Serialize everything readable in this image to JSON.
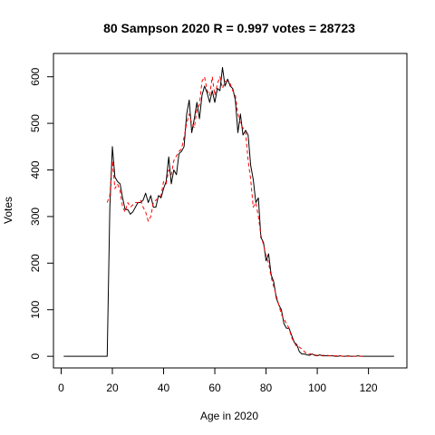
{
  "chart_data": {
    "type": "line",
    "title": "80 Sampson 2020 R = 0.997 votes = 28723",
    "xlabel": "Age in 2020",
    "ylabel": "Votes",
    "xlim": [
      -3,
      135
    ],
    "ylim": [
      -25,
      650
    ],
    "xticks": [
      0,
      20,
      40,
      60,
      80,
      100,
      120
    ],
    "yticks": [
      0,
      100,
      200,
      300,
      400,
      500,
      600
    ],
    "grid": false,
    "legend": "none",
    "series": [
      {
        "style": "solid",
        "color": "#000000",
        "x": [
          1,
          18,
          19,
          20,
          21,
          22,
          23,
          24,
          25,
          26,
          27,
          28,
          29,
          30,
          31,
          32,
          33,
          34,
          35,
          36,
          37,
          38,
          39,
          40,
          41,
          42,
          43,
          44,
          45,
          46,
          47,
          48,
          49,
          50,
          51,
          52,
          53,
          54,
          55,
          56,
          57,
          58,
          59,
          60,
          61,
          62,
          63,
          64,
          65,
          66,
          67,
          68,
          69,
          70,
          71,
          72,
          73,
          74,
          75,
          76,
          77,
          78,
          79,
          80,
          81,
          82,
          83,
          84,
          85,
          86,
          87,
          88,
          89,
          90,
          91,
          92,
          93,
          94,
          95,
          96,
          97,
          98,
          99,
          100,
          101,
          102,
          103,
          104,
          105,
          106,
          107,
          108,
          109,
          110,
          111,
          112,
          113,
          114,
          115,
          116,
          117,
          118,
          119,
          120,
          125,
          130
        ],
        "y": [
          0,
          0,
          320,
          450,
          385,
          375,
          370,
          340,
          315,
          315,
          305,
          310,
          320,
          330,
          330,
          335,
          350,
          330,
          345,
          320,
          320,
          345,
          340,
          360,
          375,
          428,
          370,
          400,
          390,
          435,
          440,
          450,
          520,
          550,
          480,
          510,
          545,
          510,
          560,
          580,
          565,
          545,
          570,
          545,
          575,
          570,
          620,
          580,
          595,
          580,
          575,
          550,
          480,
          520,
          475,
          485,
          475,
          410,
          380,
          330,
          340,
          255,
          245,
          205,
          220,
          175,
          160,
          125,
          110,
          100,
          70,
          60,
          60,
          45,
          30,
          25,
          10,
          5,
          5,
          3,
          2,
          5,
          2,
          1,
          3,
          1,
          1,
          1,
          1,
          1,
          0,
          0,
          1,
          0,
          0,
          1,
          0,
          0,
          0,
          1,
          0,
          0,
          0,
          0,
          0,
          0
        ]
      },
      {
        "style": "dashed",
        "color": "#ff0000",
        "x": [
          18,
          19,
          20,
          21,
          22,
          23,
          24,
          25,
          26,
          27,
          28,
          29,
          30,
          31,
          32,
          33,
          34,
          35,
          36,
          37,
          38,
          39,
          40,
          41,
          42,
          43,
          44,
          45,
          46,
          47,
          48,
          49,
          50,
          51,
          52,
          53,
          54,
          55,
          56,
          57,
          58,
          59,
          60,
          61,
          62,
          63,
          64,
          65,
          66,
          67,
          68,
          69,
          70,
          71,
          72,
          73,
          74,
          75,
          76,
          77,
          78,
          79,
          80,
          81,
          82,
          83,
          84,
          85,
          86,
          87,
          88,
          89,
          90,
          91,
          92,
          93,
          94,
          95,
          96,
          97,
          98,
          99,
          100,
          101,
          102,
          103,
          104,
          105,
          106,
          107,
          108,
          109,
          110,
          111,
          112,
          113,
          114,
          115,
          116,
          117,
          118
        ],
        "y": [
          330,
          345,
          420,
          360,
          370,
          355,
          320,
          310,
          330,
          320,
          325,
          330,
          330,
          335,
          320,
          310,
          290,
          300,
          330,
          335,
          340,
          345,
          375,
          370,
          400,
          390,
          420,
          430,
          440,
          445,
          470,
          500,
          520,
          500,
          490,
          530,
          540,
          590,
          600,
          570,
          560,
          600,
          560,
          585,
          600,
          575,
          590,
          590,
          585,
          570,
          560,
          520,
          500,
          490,
          480,
          420,
          380,
          320,
          330,
          300,
          260,
          240,
          215,
          200,
          170,
          150,
          130,
          110,
          90,
          80,
          70,
          60,
          40,
          30,
          20,
          20,
          15,
          10,
          5,
          5,
          5,
          3,
          2,
          2,
          2,
          2,
          2,
          1,
          1,
          1,
          1,
          1,
          0,
          0,
          0,
          0,
          0,
          0,
          0,
          0,
          0
        ]
      }
    ]
  }
}
